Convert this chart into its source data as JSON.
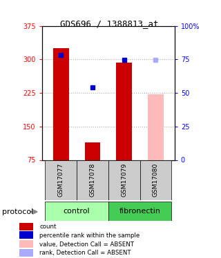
{
  "title": "GDS696 / 1388813_at",
  "samples": [
    "GSM17077",
    "GSM17078",
    "GSM17079",
    "GSM17080"
  ],
  "bar_values": [
    325,
    115,
    292,
    null
  ],
  "bar_color": "#cc0000",
  "absent_bar_values": [
    null,
    null,
    null,
    222
  ],
  "absent_bar_color": "#ffbbbb",
  "rank_values": [
    310,
    238,
    299,
    null
  ],
  "rank_absent_values": [
    null,
    null,
    null,
    299
  ],
  "rank_color": "#0000cc",
  "rank_absent_color": "#aaaaff",
  "ylim_left": [
    75,
    375
  ],
  "ylim_right": [
    0,
    100
  ],
  "left_ticks": [
    75,
    150,
    225,
    300,
    375
  ],
  "right_ticks": [
    0,
    25,
    50,
    75,
    100
  ],
  "right_tick_labels": [
    "0",
    "25",
    "50",
    "75",
    "100%"
  ],
  "group_colors": {
    "control": "#aaffaa",
    "fibronectin": "#44cc55"
  },
  "bg_color": "#ffffff",
  "protocol_label": "protocol",
  "grid_color": "#aaaaaa",
  "legend_items": [
    [
      "#cc0000",
      "count"
    ],
    [
      "#0000cc",
      "percentile rank within the sample"
    ],
    [
      "#ffbbbb",
      "value, Detection Call = ABSENT"
    ],
    [
      "#aaaaff",
      "rank, Detection Call = ABSENT"
    ]
  ]
}
